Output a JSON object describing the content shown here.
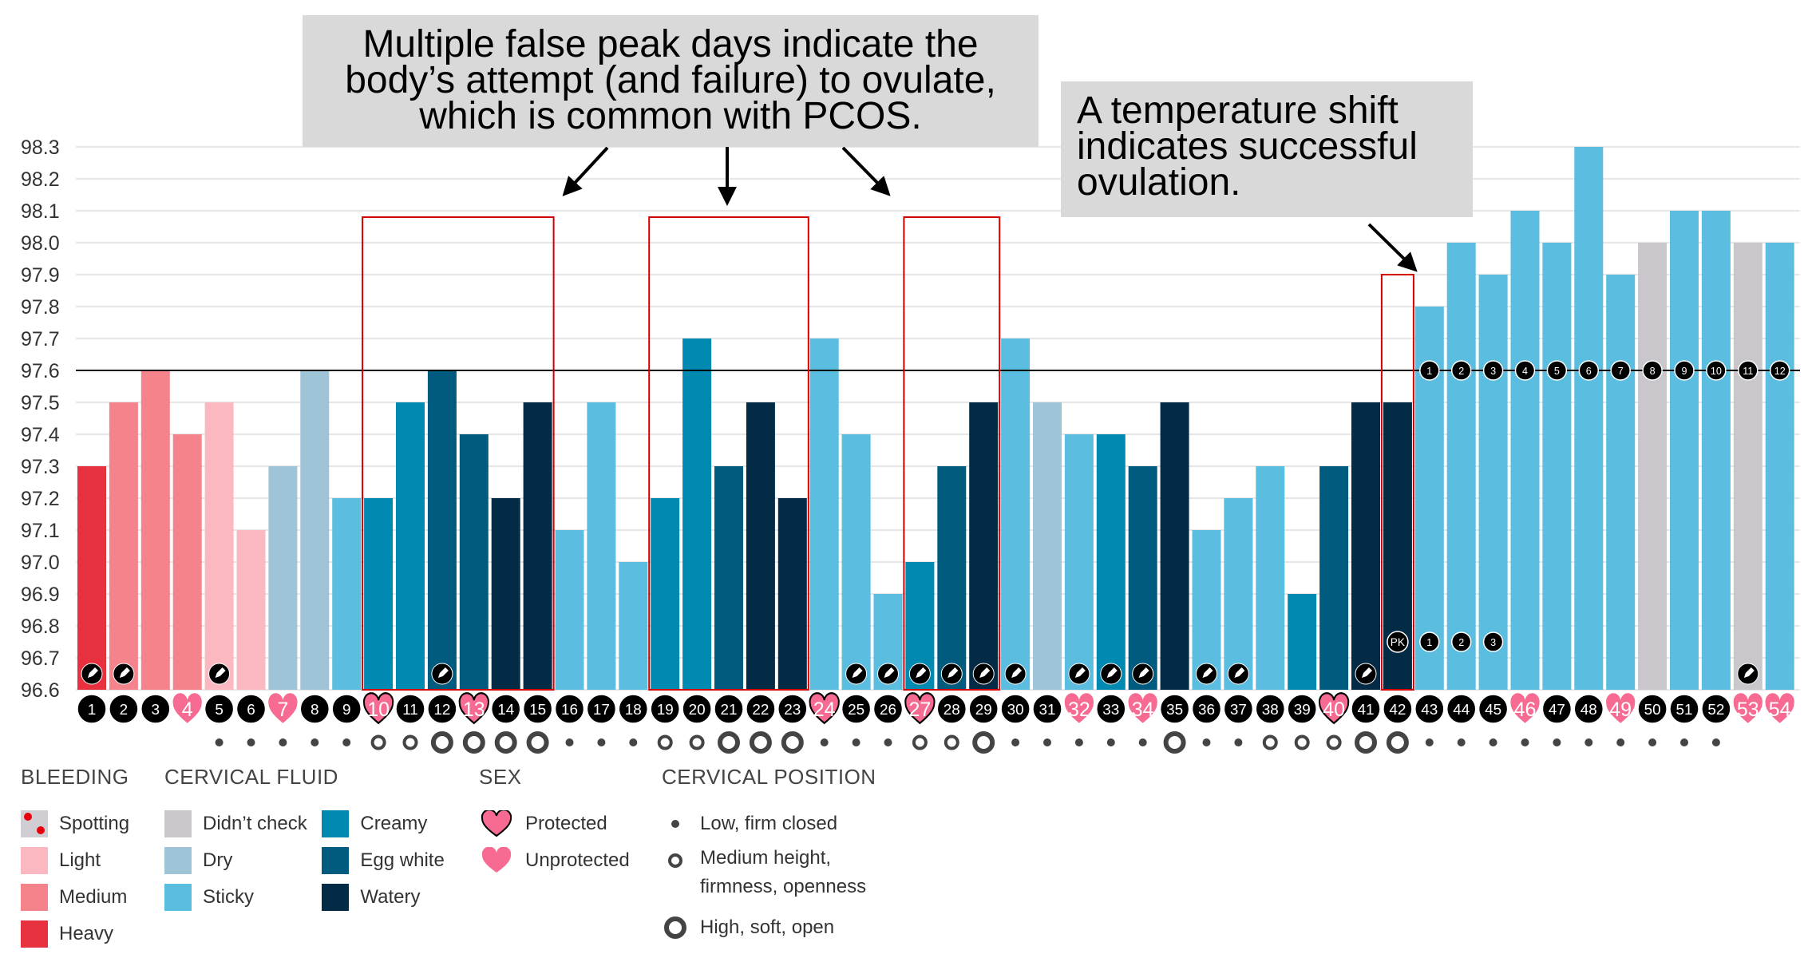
{
  "chart_data": {
    "type": "bar",
    "title": "",
    "ylabel": "",
    "ylim": [
      96.6,
      98.3
    ],
    "yticks": [
      "98.3",
      "98.2",
      "98.1",
      "98.0",
      "97.9",
      "97.8",
      "97.7",
      "97.6",
      "97.5",
      "97.4",
      "97.3",
      "97.2",
      "97.1",
      "97.0",
      "96.9",
      "96.8",
      "96.7",
      "96.6"
    ],
    "coverline": 97.6,
    "days": [
      1,
      2,
      3,
      4,
      5,
      6,
      7,
      8,
      9,
      10,
      11,
      12,
      13,
      14,
      15,
      16,
      17,
      18,
      19,
      20,
      21,
      22,
      23,
      24,
      25,
      26,
      27,
      28,
      29,
      30,
      31,
      32,
      33,
      34,
      35,
      36,
      37,
      38,
      39,
      40,
      41,
      42,
      43,
      44,
      45,
      46,
      47,
      48,
      49,
      50,
      51,
      52,
      53,
      54
    ],
    "values": [
      97.3,
      97.5,
      97.6,
      97.4,
      97.5,
      97.1,
      97.3,
      97.6,
      97.2,
      97.2,
      97.5,
      97.6,
      97.4,
      97.2,
      97.5,
      97.1,
      97.5,
      97.0,
      97.2,
      97.7,
      97.3,
      97.5,
      97.2,
      97.7,
      97.4,
      96.9,
      97.0,
      97.3,
      97.5,
      97.7,
      97.5,
      97.4,
      97.4,
      97.3,
      97.5,
      97.1,
      97.2,
      97.3,
      96.9,
      97.3,
      97.5,
      97.5,
      97.8,
      98.0,
      97.9,
      98.1,
      98.0,
      98.3,
      97.9,
      98.0,
      98.1,
      98.1,
      98.0,
      98.0
    ],
    "category": [
      "heavy",
      "medium",
      "medium",
      "medium",
      "light",
      "light",
      "dry",
      "dry",
      "sticky",
      "creamy",
      "creamy",
      "egg",
      "egg",
      "watery",
      "watery",
      "sticky",
      "sticky",
      "sticky",
      "creamy",
      "creamy",
      "egg",
      "watery",
      "watery",
      "sticky",
      "sticky",
      "sticky",
      "creamy",
      "egg",
      "watery",
      "sticky",
      "dry",
      "sticky",
      "creamy",
      "egg",
      "watery",
      "sticky",
      "sticky",
      "sticky",
      "creamy",
      "egg",
      "watery",
      "watery",
      "sticky",
      "sticky",
      "sticky",
      "sticky",
      "sticky",
      "sticky",
      "sticky",
      "none",
      "sticky",
      "sticky",
      "none",
      "sticky"
    ],
    "sex": {
      "protected": [
        10,
        13,
        24,
        27,
        40
      ],
      "unprotected": [
        4,
        7,
        32,
        34,
        46,
        49,
        53,
        54
      ]
    },
    "notes_days": [
      1,
      2,
      5,
      12,
      25,
      26,
      27,
      28,
      29,
      30,
      32,
      33,
      34,
      36,
      37,
      41,
      53
    ],
    "position": [
      "",
      "",
      "",
      "",
      "low",
      "low",
      "low",
      "low",
      "low",
      "med",
      "med",
      "high",
      "high",
      "high",
      "high",
      "low",
      "low",
      "low",
      "med",
      "med",
      "high",
      "high",
      "high",
      "low",
      "low",
      "low",
      "med",
      "med",
      "high",
      "low",
      "low",
      "low",
      "low",
      "low",
      "high",
      "low",
      "low",
      "med",
      "med",
      "med",
      "high",
      "high",
      "low",
      "low",
      "low",
      "low",
      "low",
      "low",
      "low",
      "low",
      "low",
      "low",
      "",
      ""
    ],
    "peak_label": "PK",
    "peak_day": 42,
    "count_days_low": [
      43,
      44,
      45
    ],
    "count_labels_low": [
      "1",
      "2",
      "3"
    ],
    "count_labels_high": [
      "1",
      "2",
      "3",
      "4",
      "5",
      "6",
      "7",
      "8",
      "9",
      "10",
      "11",
      "12"
    ],
    "highlight_boxes": [
      [
        10,
        15,
        98.08
      ],
      [
        19,
        23,
        98.08
      ],
      [
        27,
        29,
        98.08
      ],
      [
        42,
        42,
        97.9
      ]
    ]
  },
  "colors": {
    "heavy": "#e8313f",
    "medium": "#f4838b",
    "light": "#fbb8c1",
    "none": "#c9c7cc",
    "dry": "#9fc3d7",
    "sticky": "#5bbde0",
    "creamy": "#0089b1",
    "egg": "#005b7e",
    "watery": "#032b45",
    "heart": "#f76b93",
    "box": "#d40000"
  },
  "annotations": {
    "a1": [
      "Multiple false peak days indicate the",
      "body’s attempt (and failure) to ovulate,",
      "which is common with PCOS."
    ],
    "a2": [
      "A temperature shift",
      "indicates successful",
      "ovulation."
    ]
  },
  "legend": {
    "bleeding": {
      "title": "BLEEDING",
      "items": [
        "Spotting",
        "Light",
        "Medium",
        "Heavy"
      ]
    },
    "fluid": {
      "title": "CERVICAL FLUID",
      "items": [
        "Didn’t check",
        "Dry",
        "Sticky",
        "Creamy",
        "Egg white",
        "Watery"
      ]
    },
    "sex": {
      "title": "SEX",
      "items": [
        "Protected",
        "Unprotected"
      ]
    },
    "position": {
      "title": "CERVICAL POSITION",
      "items": [
        "Low, firm closed",
        "Medium height,",
        "firmness, openness",
        "High, soft, open"
      ]
    }
  }
}
